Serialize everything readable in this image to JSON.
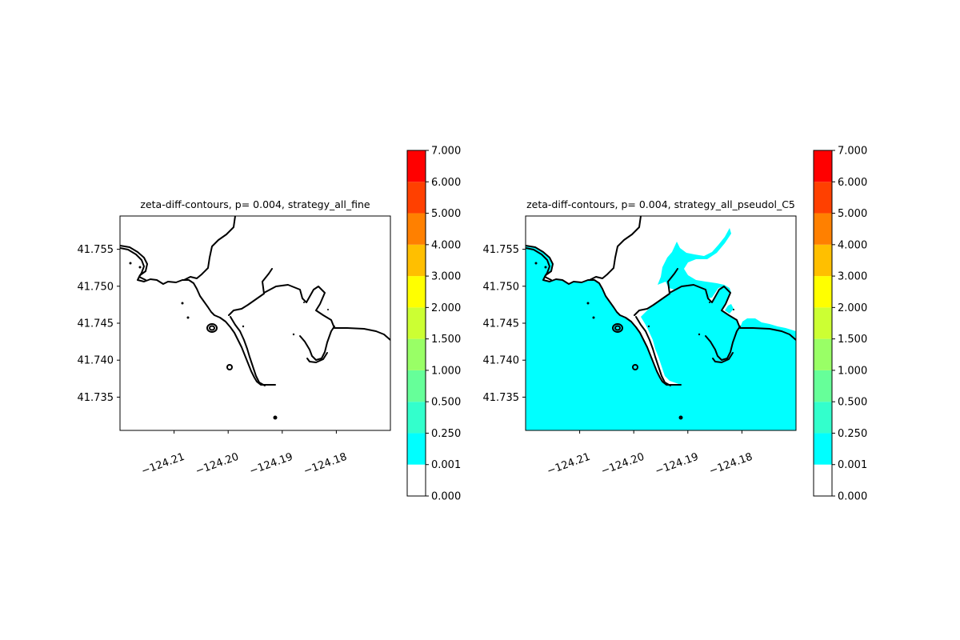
{
  "figure": {
    "background": "#ffffff"
  },
  "chart_data": [
    {
      "type": "heatmap",
      "title": "zeta-diff-contours, p= 0.004, strategy_all_fine",
      "xlabel": "",
      "ylabel": "",
      "xlim": [
        -124.22,
        -124.17
      ],
      "ylim": [
        41.7305,
        41.7595
      ],
      "x_ticks": [
        -124.21,
        -124.2,
        -124.19,
        -124.18
      ],
      "x_tick_labels": [
        "−124.21",
        "−124.20",
        "−124.19",
        "−124.18"
      ],
      "y_ticks": [
        41.735,
        41.74,
        41.745,
        41.75,
        41.755
      ],
      "y_tick_labels": [
        "41.735",
        "41.740",
        "41.745",
        "41.750",
        "41.755"
      ],
      "filled_levels": [],
      "coastline_color": "#000000",
      "colorbar": {
        "boundaries": [
          "0.000",
          "0.001",
          "0.250",
          "0.500",
          "1.000",
          "1.500",
          "2.000",
          "3.000",
          "4.000",
          "5.000",
          "6.000",
          "7.000"
        ],
        "colors": [
          "#ffffff",
          "#00ffff",
          "#33ffcc",
          "#66ff99",
          "#99ff66",
          "#ccff33",
          "#ffff00",
          "#ffbf00",
          "#ff8000",
          "#ff4000",
          "#ff0000"
        ]
      }
    },
    {
      "type": "heatmap",
      "title": "zeta-diff-contours, p= 0.004, strategy_all_pseudol_C5",
      "xlabel": "",
      "ylabel": "",
      "xlim": [
        -124.22,
        -124.17
      ],
      "ylim": [
        41.7305,
        41.7595
      ],
      "x_ticks": [
        -124.21,
        -124.2,
        -124.19,
        -124.18
      ],
      "x_tick_labels": [
        "−124.21",
        "−124.20",
        "−124.19",
        "−124.18"
      ],
      "y_ticks": [
        41.735,
        41.74,
        41.745,
        41.75,
        41.755
      ],
      "y_tick_labels": [
        "41.735",
        "41.740",
        "41.745",
        "41.750",
        "41.755"
      ],
      "filled_levels": [
        {
          "range": [
            "0.001",
            "0.250"
          ],
          "color": "#00ffff"
        }
      ],
      "coastline_color": "#000000",
      "colorbar": {
        "boundaries": [
          "0.000",
          "0.001",
          "0.250",
          "0.500",
          "1.000",
          "1.500",
          "2.000",
          "3.000",
          "4.000",
          "5.000",
          "6.000",
          "7.000"
        ],
        "colors": [
          "#ffffff",
          "#00ffff",
          "#33ffcc",
          "#66ff99",
          "#99ff66",
          "#ccff33",
          "#ffff00",
          "#ffbf00",
          "#ff8000",
          "#ff4000",
          "#ff0000"
        ]
      }
    }
  ]
}
